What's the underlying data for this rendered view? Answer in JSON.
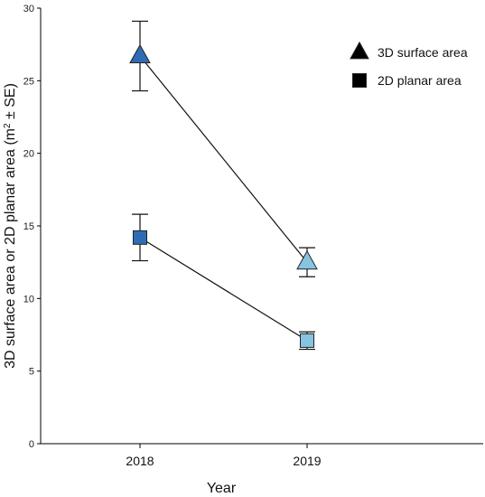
{
  "chart_data": {
    "type": "line",
    "categories": [
      "2018",
      "2019"
    ],
    "xlabel": "Year",
    "ylabel_main": "3D surface area or 2D planar area (m",
    "ylabel_sup": "2",
    "ylabel_tail": " ± SE)",
    "ylim": [
      0,
      30
    ],
    "yticks": [
      0,
      5,
      10,
      15,
      20,
      25,
      30
    ],
    "grid": false,
    "legend_position": "top-right",
    "series": [
      {
        "name": "3D surface area",
        "marker": "triangle",
        "values": [
          26.7,
          12.5
        ],
        "se": [
          2.4,
          1.0
        ],
        "colors": [
          "#2e6db5",
          "#86c4e0"
        ]
      },
      {
        "name": "2D planar area",
        "marker": "square",
        "values": [
          14.2,
          7.1
        ],
        "se": [
          1.6,
          0.6
        ],
        "colors": [
          "#2e6db5",
          "#86c4e0"
        ]
      }
    ]
  }
}
